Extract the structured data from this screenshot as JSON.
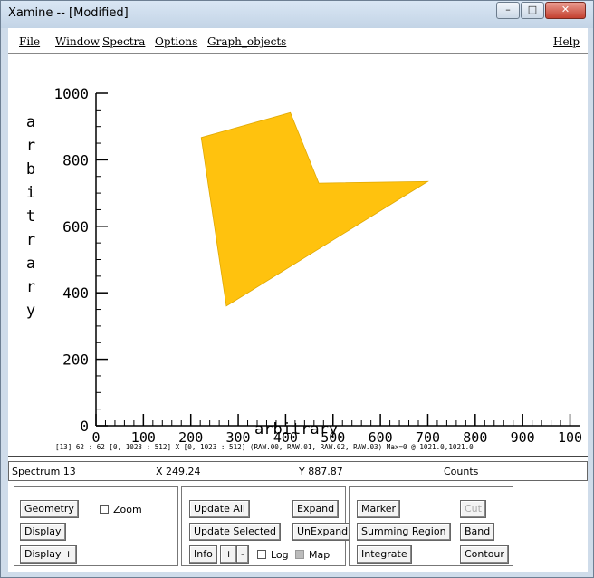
{
  "window": {
    "title": "Xamine --  [Modified]",
    "minimize": "–",
    "maximize": "□",
    "close": "✕"
  },
  "menubar": [
    {
      "label": "File"
    },
    {
      "label": "Window"
    },
    {
      "label": "Spectra"
    },
    {
      "label": "Options"
    },
    {
      "label": "Graph_objects"
    },
    {
      "label": "Help"
    }
  ],
  "plot": {
    "xlabel": "arbitrary",
    "ylabel": "a r b i t r a r y",
    "xticks": [
      "0",
      "100",
      "200",
      "300",
      "400",
      "500",
      "600",
      "700",
      "800",
      "900",
      "100"
    ],
    "yticks": [
      "0",
      "200",
      "400",
      "600",
      "800",
      "1000"
    ],
    "info_line": "[13] 62 : 62 [0, 1023 : 512] X [0, 1023 : 512] (RAW.00, RAW.01, RAW.02, RAW.03) Max=0 @ 1021.0,1021.0",
    "polygon_color": "#ffc20e",
    "polygon": [
      [
        222,
        867
      ],
      [
        410,
        942
      ],
      [
        470,
        730
      ],
      [
        700,
        735
      ],
      [
        275,
        360
      ]
    ]
  },
  "status": {
    "spectrum": "Spectrum  13",
    "x": "X 249.24",
    "y": "Y 887.87",
    "counts": "Counts"
  },
  "panel1": {
    "geometry": "Geometry",
    "zoom": "Zoom",
    "display": "Display",
    "display_plus": "Display +"
  },
  "panel2": {
    "update_all": "Update All",
    "expand": "Expand",
    "update_selected": "Update Selected",
    "unexpand": "UnExpand",
    "info": "Info",
    "plus": "+",
    "minus": "-",
    "log": "Log",
    "map": "Map"
  },
  "panel3": {
    "marker": "Marker",
    "cut": "Cut",
    "summing_region": "Summing Region",
    "band": "Band",
    "integrate": "Integrate",
    "contour": "Contour"
  }
}
